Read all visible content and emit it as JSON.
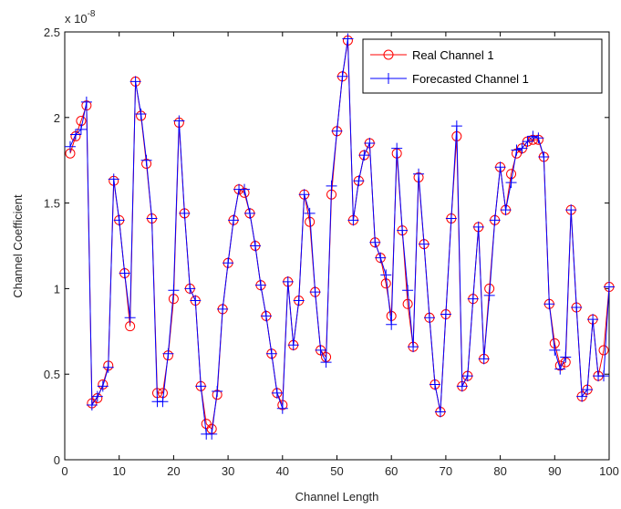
{
  "chart_data": {
    "type": "line",
    "xlabel": "Channel Length",
    "ylabel": "Channel Coefficient",
    "exponent_label": "x 10",
    "exponent_power": "-8",
    "xlim": [
      0,
      100
    ],
    "ylim": [
      0,
      2.5
    ],
    "xticks": [
      "0",
      "10",
      "20",
      "30",
      "40",
      "50",
      "60",
      "70",
      "80",
      "90",
      "100"
    ],
    "yticks": [
      "0",
      "0.5",
      "1",
      "1.5",
      "2",
      "2.5"
    ],
    "grid": false,
    "legend_position": "top-right",
    "x": [
      1,
      2,
      3,
      4,
      5,
      6,
      7,
      8,
      9,
      10,
      11,
      12,
      13,
      14,
      15,
      16,
      17,
      18,
      19,
      20,
      21,
      22,
      23,
      24,
      25,
      26,
      27,
      28,
      29,
      30,
      31,
      32,
      33,
      34,
      35,
      36,
      37,
      38,
      39,
      40,
      41,
      42,
      43,
      44,
      45,
      46,
      47,
      48,
      49,
      50,
      51,
      52,
      53,
      54,
      55,
      56,
      57,
      58,
      59,
      60,
      61,
      62,
      63,
      64,
      65,
      66,
      67,
      68,
      69,
      70,
      71,
      72,
      73,
      74,
      75,
      76,
      77,
      78,
      79,
      80,
      81,
      82,
      83,
      84,
      85,
      86,
      87,
      88,
      89,
      90,
      91,
      92,
      93,
      94,
      95,
      96,
      97,
      98,
      99,
      100
    ],
    "series": [
      {
        "name": "Real Channel 1",
        "color": "#ff0000",
        "marker": "circle",
        "values": [
          1.79,
          1.89,
          1.98,
          2.07,
          0.33,
          0.36,
          0.44,
          0.55,
          1.63,
          1.4,
          1.09,
          0.78,
          2.21,
          2.01,
          1.73,
          1.41,
          0.39,
          0.39,
          0.61,
          0.94,
          1.97,
          1.44,
          1.0,
          0.93,
          0.43,
          0.21,
          0.18,
          0.38,
          0.88,
          1.15,
          1.4,
          1.58,
          1.56,
          1.44,
          1.25,
          1.02,
          0.84,
          0.62,
          0.39,
          0.32,
          1.04,
          0.67,
          0.93,
          1.55,
          1.39,
          0.98,
          0.64,
          0.6,
          1.55,
          1.92,
          2.24,
          2.45,
          1.4,
          1.63,
          1.78,
          1.85,
          1.27,
          1.18,
          1.03,
          0.84,
          1.79,
          1.34,
          0.91,
          0.66,
          1.65,
          1.26,
          0.83,
          0.44,
          0.28,
          0.85,
          1.41,
          1.89,
          0.43,
          0.49,
          0.94,
          1.36,
          0.59,
          1.0,
          1.4,
          1.71,
          1.46,
          1.67,
          1.79,
          1.82,
          1.86,
          1.87,
          1.87,
          1.77,
          0.91,
          0.68,
          0.55,
          0.57,
          1.46,
          0.89,
          0.37,
          0.41,
          0.82,
          0.49,
          0.64,
          1.01
        ]
      },
      {
        "name": "Forecasted Channel 1",
        "color": "#0000ff",
        "marker": "plus",
        "values": [
          1.83,
          1.9,
          1.93,
          2.09,
          0.32,
          0.37,
          0.43,
          0.54,
          1.64,
          1.4,
          1.09,
          0.83,
          2.21,
          2.02,
          1.75,
          1.41,
          0.34,
          0.34,
          0.62,
          0.99,
          1.98,
          1.44,
          1.0,
          0.93,
          0.43,
          0.15,
          0.15,
          0.4,
          0.88,
          1.15,
          1.4,
          1.58,
          1.58,
          1.44,
          1.25,
          1.02,
          0.84,
          0.62,
          0.39,
          0.3,
          1.04,
          0.67,
          0.93,
          1.55,
          1.44,
          0.98,
          0.64,
          0.57,
          1.6,
          1.92,
          2.24,
          2.46,
          1.4,
          1.63,
          1.78,
          1.85,
          1.27,
          1.18,
          1.08,
          0.79,
          1.82,
          1.34,
          0.99,
          0.66,
          1.67,
          1.26,
          0.83,
          0.44,
          0.28,
          0.85,
          1.41,
          1.95,
          0.43,
          0.49,
          0.94,
          1.36,
          0.59,
          0.96,
          1.4,
          1.71,
          1.46,
          1.62,
          1.81,
          1.82,
          1.86,
          1.89,
          1.88,
          1.77,
          0.91,
          0.64,
          0.53,
          0.6,
          1.46,
          0.89,
          0.37,
          0.41,
          0.82,
          0.49,
          0.49,
          1.01
        ]
      }
    ]
  }
}
